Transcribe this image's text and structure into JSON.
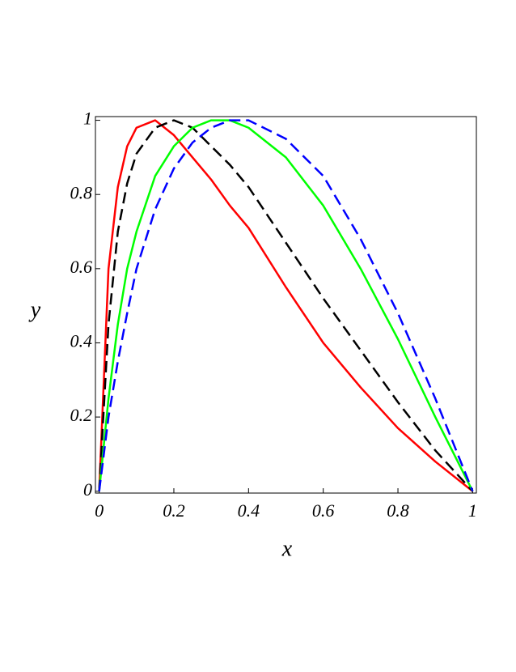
{
  "chart_data": {
    "type": "line",
    "x_label": "x",
    "y_label": "y",
    "x": [
      0,
      0.025,
      0.05,
      0.075,
      0.1,
      0.15,
      0.2,
      0.25,
      0.3,
      0.35,
      0.4,
      0.5,
      0.6,
      0.7,
      0.8,
      0.9,
      1
    ],
    "series": [
      {
        "color": "#ff0000",
        "dashed": false,
        "values": [
          0,
          0.6,
          0.82,
          0.93,
          0.98,
          1.0,
          0.96,
          0.9,
          0.84,
          0.77,
          0.71,
          0.55,
          0.4,
          0.28,
          0.17,
          0.08,
          0
        ]
      },
      {
        "color": "#000000",
        "dashed": true,
        "values": [
          0,
          0.45,
          0.7,
          0.83,
          0.91,
          0.98,
          1.0,
          0.98,
          0.93,
          0.88,
          0.82,
          0.67,
          0.52,
          0.38,
          0.24,
          0.11,
          0
        ]
      },
      {
        "color": "#00ff00",
        "dashed": false,
        "values": [
          0,
          0.25,
          0.45,
          0.6,
          0.7,
          0.85,
          0.93,
          0.98,
          1.0,
          1.0,
          0.98,
          0.9,
          0.77,
          0.6,
          0.41,
          0.2,
          0
        ]
      },
      {
        "color": "#0000ff",
        "dashed": true,
        "values": [
          0,
          0.2,
          0.35,
          0.48,
          0.6,
          0.76,
          0.87,
          0.94,
          0.98,
          1.0,
          1.0,
          0.95,
          0.85,
          0.68,
          0.48,
          0.25,
          0
        ]
      }
    ],
    "xlim": [
      -0.01,
      1.01
    ],
    "ylim": [
      -0.005,
      1.01
    ],
    "xticks": [
      0,
      0.2,
      0.4,
      0.6,
      0.8,
      1
    ],
    "yticks": [
      0,
      0.2,
      0.4,
      0.6,
      0.8,
      1
    ]
  }
}
